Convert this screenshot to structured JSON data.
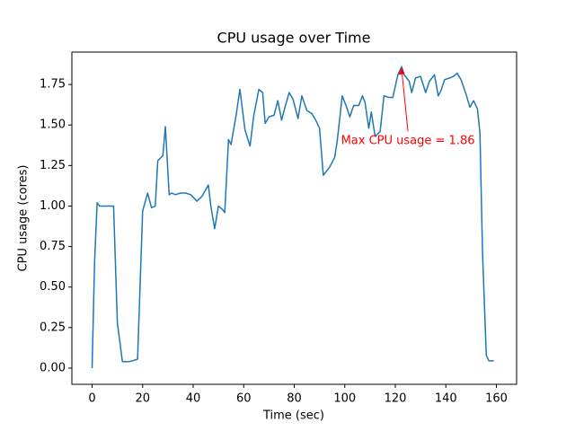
{
  "chart_data": {
    "type": "line",
    "title": "CPU usage over Time",
    "x_label": "Time (sec)",
    "y_label": "CPU usage (cores)",
    "x": [
      0,
      1,
      2,
      3,
      4,
      5,
      6.5,
      8.5,
      10,
      12,
      14.5,
      16,
      18,
      20,
      22,
      23.5,
      25,
      26,
      28,
      29,
      30.5,
      31.5,
      33,
      35,
      37,
      39,
      41.5,
      43.5,
      46,
      47,
      48.5,
      50,
      51.5,
      52.5,
      54,
      55,
      57,
      58.5,
      60.5,
      62.5,
      64,
      66,
      67.5,
      68.5,
      70,
      72,
      73.5,
      75,
      76.5,
      78,
      79.5,
      81.5,
      83,
      85,
      87,
      88.5,
      90,
      91.5,
      94,
      96,
      97,
      99,
      100.5,
      102,
      103.5,
      105.5,
      107,
      108,
      109.5,
      110.5,
      112,
      114,
      115.5,
      117.5,
      119,
      121,
      122.5,
      123.5,
      125.5,
      126.5,
      128,
      130,
      132,
      133.5,
      135.5,
      137,
      138,
      139.5,
      141.5,
      143,
      144.5,
      146,
      148,
      149.5,
      151,
      152.5,
      153.5,
      154.5,
      156,
      157,
      159
    ],
    "series": [
      {
        "name": "CPU usage",
        "color": "#1f77b4",
        "values": [
          0,
          0.66,
          1.02,
          1.0,
          1.0,
          1.0,
          1.0,
          1.0,
          0.28,
          0.04,
          0.04,
          0.045,
          0.055,
          0.97,
          1.08,
          0.99,
          1.0,
          1.28,
          1.31,
          1.49,
          1.07,
          1.08,
          1.07,
          1.08,
          1.08,
          1.07,
          1.03,
          1.06,
          1.13,
          1.0,
          0.86,
          1.0,
          0.98,
          0.96,
          1.41,
          1.38,
          1.56,
          1.72,
          1.47,
          1.37,
          1.56,
          1.72,
          1.7,
          1.51,
          1.55,
          1.56,
          1.65,
          1.53,
          1.62,
          1.7,
          1.66,
          1.54,
          1.68,
          1.59,
          1.57,
          1.53,
          1.48,
          1.19,
          1.24,
          1.3,
          1.4,
          1.68,
          1.62,
          1.55,
          1.62,
          1.62,
          1.68,
          1.64,
          1.48,
          1.58,
          1.43,
          1.46,
          1.68,
          1.67,
          1.67,
          1.81,
          1.86,
          1.81,
          1.77,
          1.7,
          1.79,
          1.8,
          1.7,
          1.77,
          1.81,
          1.68,
          1.71,
          1.78,
          1.79,
          1.8,
          1.82,
          1.78,
          1.69,
          1.61,
          1.65,
          1.6,
          1.45,
          0.72,
          0.08,
          0.045,
          0.045
        ]
      }
    ],
    "annotation": {
      "text": "Max CPU usage = 1.86",
      "x": 122.5,
      "y": 1.86,
      "color": "#ff0000"
    },
    "xlim": [
      -8,
      168
    ],
    "ylim": [
      -0.1,
      1.95
    ],
    "xticks": [
      0,
      20,
      40,
      60,
      80,
      100,
      120,
      140,
      160
    ],
    "yticks": [
      {
        "value": 0,
        "label": "0.00"
      },
      {
        "value": 0.25,
        "label": "0.25"
      },
      {
        "value": 0.5,
        "label": "0.50"
      },
      {
        "value": 0.75,
        "label": "0.75"
      },
      {
        "value": 1,
        "label": "1.00"
      },
      {
        "value": 1.25,
        "label": "1.25"
      },
      {
        "value": 1.5,
        "label": "1.50"
      },
      {
        "value": 1.75,
        "label": "1.75"
      }
    ],
    "grid": false
  }
}
